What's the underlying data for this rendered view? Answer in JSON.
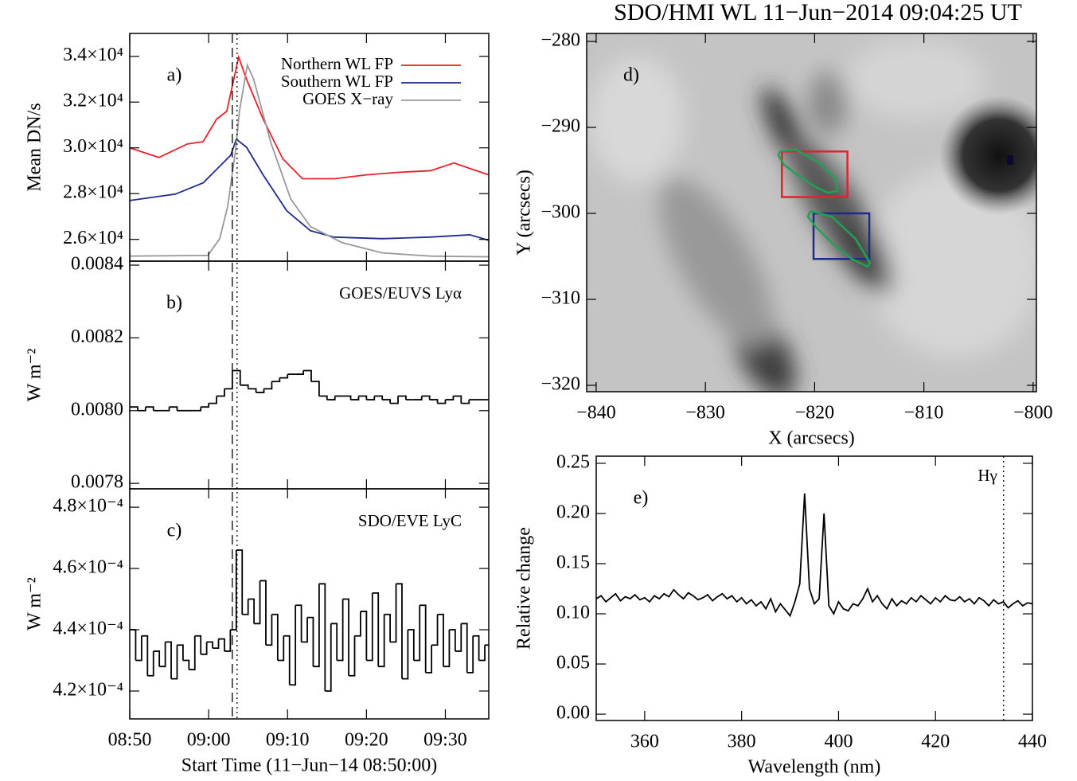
{
  "chart_data": [
    {
      "type": "line",
      "panel_label": "a)",
      "ylabel": "Mean DN/s",
      "legend": "upper right",
      "xlim": [
        0,
        45.5
      ],
      "ylim": [
        25050,
        35000
      ],
      "yticks": [
        {
          "value": 26000,
          "label": "2.6×10⁴"
        },
        {
          "value": 28000,
          "label": "2.8×10⁴"
        },
        {
          "value": 30000,
          "label": "3.0×10⁴"
        },
        {
          "value": 32000,
          "label": "3.2×10⁴"
        },
        {
          "value": 34000,
          "label": "3.4×10⁴"
        }
      ],
      "series": [
        {
          "name": "Northern WL FP",
          "color": "#e8202a",
          "x": [
            0,
            3.7,
            7.3,
            9.3,
            11.0,
            12.3,
            13.8,
            14.8,
            16.9,
            19.4,
            21.9,
            26.0,
            30.0,
            34.0,
            38.1,
            41.1,
            43.1,
            45.5
          ],
          "values": [
            30000,
            29580,
            30170,
            30270,
            31250,
            31600,
            33970,
            33000,
            31260,
            29520,
            28650,
            28650,
            28820,
            28930,
            29000,
            29340,
            29100,
            28820
          ]
        },
        {
          "name": "Southern WL FP",
          "color": "#1f2a8c",
          "x": [
            0,
            5.8,
            9.3,
            11.3,
            12.8,
            13.5,
            14.8,
            16.9,
            19.9,
            22.9,
            25.9,
            32.0,
            38.1,
            43.1,
            45.5
          ],
          "values": [
            27700,
            27980,
            28470,
            29160,
            29680,
            30380,
            30030,
            28820,
            27250,
            26380,
            26100,
            26030,
            26100,
            26200,
            25960
          ]
        },
        {
          "name": "GOES X−ray",
          "color": "#999999",
          "x": [
            0,
            9.9,
            11.4,
            12.4,
            13.4,
            13.9,
            14.9,
            15.7,
            17.9,
            20.4,
            22.9,
            26.9,
            32.0,
            38.1,
            45.5
          ],
          "values": [
            25270,
            25300,
            26030,
            27420,
            29860,
            31600,
            33620,
            33000,
            30210,
            27770,
            26560,
            25860,
            25410,
            25270,
            25240
          ]
        }
      ],
      "vlines": [
        {
          "x": 13.0,
          "style": "dashed"
        },
        {
          "x": 13.6,
          "style": "dotted"
        }
      ]
    },
    {
      "type": "step",
      "panel_label": "b)",
      "annotation": "GOES/EUVS Lyα",
      "ylabel": "W m⁻²",
      "xlim": [
        0,
        45.5
      ],
      "ylim": [
        0.007785,
        0.008411
      ],
      "yticks": [
        0.0078,
        {
          "value": 0.008,
          "label": "0.0080"
        },
        0.0082,
        0.0084
      ],
      "series": [
        {
          "color": "#000000",
          "x": [
            0,
            1,
            2,
            3,
            4,
            5,
            6,
            7,
            8,
            9,
            10,
            11,
            12,
            13,
            14,
            15,
            16,
            17,
            18,
            19,
            20,
            21,
            22,
            23,
            24,
            25,
            26,
            27,
            28,
            29,
            30,
            31,
            32,
            33,
            34,
            35,
            36,
            37,
            38,
            39,
            40,
            41,
            42,
            43,
            44,
            45
          ],
          "values": [
            0.00801,
            0.008,
            0.00801,
            0.008,
            0.008,
            0.00801,
            0.008,
            0.008,
            0.008,
            0.00801,
            0.00802,
            0.00804,
            0.00806,
            0.00811,
            0.00807,
            0.00806,
            0.00805,
            0.00806,
            0.00808,
            0.00809,
            0.0081,
            0.0081,
            0.00811,
            0.00808,
            0.00804,
            0.00803,
            0.00804,
            0.00804,
            0.00803,
            0.00804,
            0.00803,
            0.00804,
            0.00803,
            0.00802,
            0.00804,
            0.00803,
            0.00803,
            0.00804,
            0.00803,
            0.00802,
            0.00803,
            0.00804,
            0.00802,
            0.00803,
            0.00803,
            0.00803
          ]
        }
      ]
    },
    {
      "type": "step",
      "panel_label": "c)",
      "annotation": "SDO/EVE LyC",
      "ylabel": "W m⁻²",
      "xlabel": "Start Time (11−Jun−14 08:50:00)",
      "xlim": [
        0,
        45.5
      ],
      "ylim": [
        0.0004109,
        0.000486
      ],
      "xticks": [
        {
          "value": 0,
          "label": "08:50"
        },
        {
          "value": 10,
          "label": "09:00"
        },
        {
          "value": 20,
          "label": "09:10"
        },
        {
          "value": 30,
          "label": "09:20"
        },
        {
          "value": 40,
          "label": "09:30"
        }
      ],
      "yticks": [
        {
          "value": 0.00042,
          "label": "4.2×10⁻⁴"
        },
        {
          "value": 0.00044,
          "label": "4.4×10⁻⁴"
        },
        {
          "value": 0.00046,
          "label": "4.6×10⁻⁴"
        },
        {
          "value": 0.00048,
          "label": "4.8×10⁻⁴"
        }
      ],
      "series": [
        {
          "color": "#000000",
          "x": [
            0,
            0.75,
            1.5,
            2.25,
            3,
            3.75,
            4.5,
            5.25,
            6,
            6.75,
            7.5,
            8.25,
            9,
            9.75,
            10.5,
            11.25,
            12,
            12.75,
            13.5,
            14.25,
            15,
            15.75,
            16.5,
            17.25,
            18,
            18.75,
            19.5,
            20.25,
            21,
            21.75,
            22.5,
            23.25,
            24,
            24.75,
            25.5,
            26.25,
            27,
            27.75,
            28.5,
            29.25,
            30,
            30.75,
            31.5,
            32.25,
            33,
            33.75,
            34.5,
            35.25,
            36,
            36.75,
            37.5,
            38.25,
            39,
            39.75,
            40.5,
            41.25,
            42,
            42.75,
            43.5,
            44.25,
            45
          ],
          "values": [
            0.00044,
            0.00043,
            0.000438,
            0.000425,
            0.000433,
            0.000428,
            0.000436,
            0.000424,
            0.000435,
            0.00043,
            0.000427,
            0.000438,
            0.000432,
            0.000436,
            0.000434,
            0.000437,
            0.000433,
            0.00044,
            0.000466,
            0.000445,
            0.00045,
            0.000442,
            0.000456,
            0.000435,
            0.000445,
            0.00043,
            0.000438,
            0.000422,
            0.000448,
            0.000436,
            0.000444,
            0.000428,
            0.000455,
            0.00042,
            0.000442,
            0.00043,
            0.00045,
            0.000425,
            0.000438,
            0.000446,
            0.00043,
            0.000452,
            0.000428,
            0.000445,
            0.000436,
            0.000455,
            0.000424,
            0.00044,
            0.00043,
            0.000448,
            0.000426,
            0.000435,
            0.000445,
            0.000428,
            0.00044,
            0.000433,
            0.000442,
            0.000426,
            0.000438,
            0.00043,
            0.000435
          ]
        }
      ]
    },
    {
      "type": "image",
      "title": "SDO/HMI WL 11−Jun−2014 09:04:25 UT",
      "panel_label": "d)",
      "xlabel": "X (arcsecs)",
      "ylabel": "Y (arcsecs)",
      "xlim": [
        -840.87,
        -799.7
      ],
      "ylim": [
        -320.74,
        -279.07
      ],
      "xticks": [
        {
          "value": -840,
          "label": "−840"
        },
        {
          "value": -830,
          "label": "−830"
        },
        {
          "value": -820,
          "label": "−820"
        },
        {
          "value": -810,
          "label": "−810"
        },
        {
          "value": -800,
          "label": "−800"
        }
      ],
      "yticks": [
        {
          "value": -320,
          "label": "−320"
        },
        {
          "value": -310,
          "label": "−310"
        },
        {
          "value": -300,
          "label": "−300"
        },
        {
          "value": -290,
          "label": "−290"
        },
        {
          "value": -280,
          "label": "−280"
        }
      ],
      "boxes": [
        {
          "x0": -823.0,
          "x1": -817.0,
          "y0": -298.1,
          "y1": -292.8,
          "color": "#e8202a"
        },
        {
          "x0": -820.1,
          "x1": -815.0,
          "y0": -305.3,
          "y1": -300.0,
          "color": "#1f2a8c"
        }
      ],
      "contour_color": "#1fa352",
      "contours": [
        {
          "x": [
            -823.17,
            -821.71,
            -819.53,
            -818.07,
            -817.92,
            -818.8,
            -819.89,
            -821.35,
            -822.8,
            -823.32,
            -823.17
          ],
          "y": [
            -292.78,
            -292.59,
            -294.17,
            -296.02,
            -297.41,
            -297.59,
            -296.94,
            -295.74,
            -294.35,
            -293.24,
            -292.78
          ]
        },
        {
          "x": [
            -820.4,
            -818.43,
            -816.25,
            -814.94,
            -815.15,
            -816.61,
            -818.21,
            -819.89,
            -820.62,
            -820.4
          ],
          "y": [
            -299.72,
            -300.37,
            -302.96,
            -305.74,
            -306.2,
            -305.28,
            -303.7,
            -301.57,
            -300.37,
            -299.72
          ]
        }
      ]
    },
    {
      "type": "line",
      "panel_label": "e)",
      "xlabel": "Wavelength (nm)",
      "ylabel": "Relative change",
      "xlim": [
        350,
        440
      ],
      "ylim": [
        -0.0063,
        0.2571
      ],
      "xticks": [
        360,
        380,
        400,
        420,
        440
      ],
      "yticks": [
        {
          "value": 0,
          "label": "0.00"
        },
        0.05,
        {
          "value": 0.1,
          "label": "0.10"
        },
        0.15,
        {
          "value": 0.2,
          "label": "0.20"
        },
        0.25
      ],
      "series": [
        {
          "color": "#000000",
          "x": [
            350,
            351,
            352,
            353,
            354,
            355,
            356,
            357,
            358,
            359,
            360,
            361,
            362,
            363,
            364,
            365,
            366,
            367,
            368,
            369,
            370,
            371,
            372,
            373,
            374,
            375,
            376,
            377,
            378,
            379,
            380,
            381,
            382,
            383,
            384,
            385,
            386,
            387,
            388,
            389,
            390,
            391,
            392,
            393,
            394,
            395,
            396,
            397,
            398,
            399,
            400,
            401,
            402,
            403,
            404,
            405,
            406,
            407,
            408,
            409,
            410,
            411,
            412,
            413,
            414,
            415,
            416,
            417,
            418,
            419,
            420,
            421,
            422,
            423,
            424,
            425,
            426,
            427,
            428,
            429,
            430,
            431,
            432,
            433,
            434,
            435,
            436,
            437,
            438,
            439,
            440
          ],
          "values": [
            0.115,
            0.118,
            0.112,
            0.116,
            0.12,
            0.113,
            0.117,
            0.115,
            0.119,
            0.114,
            0.116,
            0.112,
            0.118,
            0.115,
            0.12,
            0.117,
            0.124,
            0.119,
            0.115,
            0.121,
            0.118,
            0.114,
            0.116,
            0.119,
            0.113,
            0.117,
            0.12,
            0.115,
            0.118,
            0.112,
            0.116,
            0.11,
            0.114,
            0.108,
            0.112,
            0.105,
            0.115,
            0.102,
            0.11,
            0.104,
            0.098,
            0.112,
            0.13,
            0.22,
            0.125,
            0.11,
            0.115,
            0.2,
            0.108,
            0.1,
            0.112,
            0.105,
            0.103,
            0.11,
            0.108,
            0.115,
            0.125,
            0.112,
            0.118,
            0.11,
            0.105,
            0.115,
            0.108,
            0.113,
            0.11,
            0.116,
            0.112,
            0.118,
            0.114,
            0.11,
            0.116,
            0.112,
            0.118,
            0.114,
            0.113,
            0.117,
            0.112,
            0.115,
            0.11,
            0.116,
            0.113,
            0.108,
            0.114,
            0.11,
            0.112,
            0.106,
            0.11,
            0.113,
            0.108,
            0.111,
            0.11
          ]
        }
      ],
      "vlines": [
        {
          "x": 434.05,
          "label": "Hγ",
          "style": "dotted"
        }
      ]
    }
  ]
}
